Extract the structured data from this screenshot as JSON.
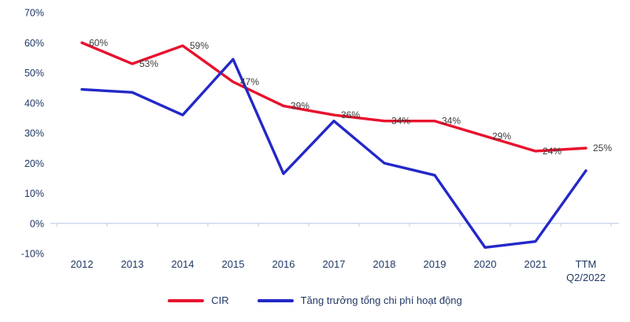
{
  "chart_data": {
    "type": "line",
    "categories": [
      "2012",
      "2013",
      "2014",
      "2015",
      "2016",
      "2017",
      "2018",
      "2019",
      "2020",
      "2021",
      "TTM\nQ2/2022"
    ],
    "series": [
      {
        "key": "cir",
        "name": "CIR",
        "color": "#e8112d",
        "values": [
          60,
          53,
          59,
          47,
          39,
          36,
          34,
          34,
          29,
          24,
          25
        ],
        "labels": [
          "60%",
          "53%",
          "59%",
          "47%",
          "39%",
          "36%",
          "34%",
          "34%",
          "29%",
          "24%",
          "25%"
        ]
      },
      {
        "key": "cost-growth",
        "name": "Tăng trưởng tổng chi phí hoạt động",
        "color": "#2328c8",
        "values": [
          44.5,
          43.5,
          36,
          54.5,
          16.5,
          34,
          20,
          16,
          -8,
          -6,
          17.5
        ]
      }
    ],
    "title": "",
    "xlabel": "",
    "ylabel": "",
    "ylim": [
      -10,
      70
    ],
    "ytick_step": 10,
    "ytick_suffix": "%",
    "grid": false,
    "legend_position": "bottom",
    "colors": {
      "axis_text": "#203864",
      "axis_line": "#c9d0ec",
      "data_label": "#3a3a3a"
    }
  }
}
